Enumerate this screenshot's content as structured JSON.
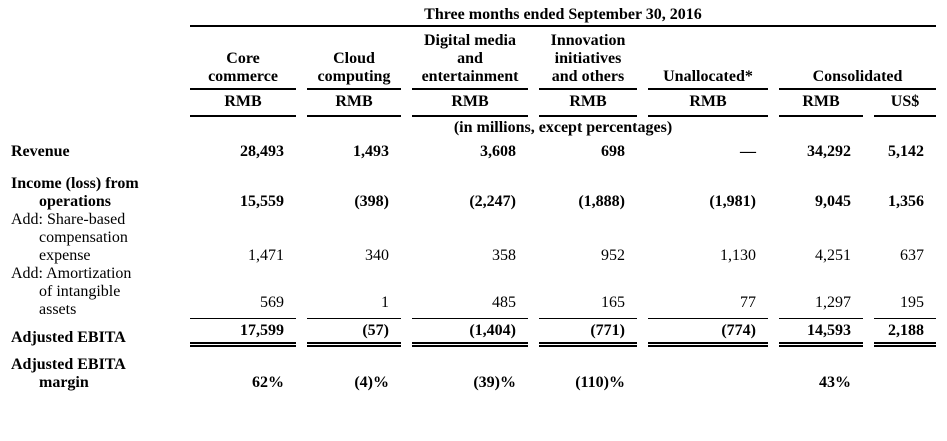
{
  "table": {
    "period_header": "Three months ended September 30, 2016",
    "note": "(in millions, except percentages)",
    "columns": [
      {
        "label": "Core\ncommerce",
        "unit": "RMB"
      },
      {
        "label": "Cloud\ncomputing",
        "unit": "RMB"
      },
      {
        "label": "Digital media\nand\nentertainment",
        "unit": "RMB"
      },
      {
        "label": "Innovation\ninitiatives\nand others",
        "unit": "RMB"
      },
      {
        "label": "Unallocated*",
        "unit": "RMB"
      }
    ],
    "consolidated": {
      "label": "Consolidated",
      "units": [
        "RMB",
        "US$"
      ]
    },
    "rows": [
      {
        "label": "Revenue",
        "values": [
          "28,493",
          "1,493",
          "3,608",
          "698",
          "—",
          "34,292",
          "5,142"
        ]
      },
      {
        "label": "Income (loss) from\noperations",
        "values": [
          "15,559",
          "(398)",
          "(2,247)",
          "(1,888)",
          "(1,981)",
          "9,045",
          "1,356"
        ]
      },
      {
        "label": "Add: Share-based\ncompensation\nexpense",
        "values": [
          "1,471",
          "340",
          "358",
          "952",
          "1,130",
          "4,251",
          "637"
        ]
      },
      {
        "label": "Add: Amortization\nof intangible\nassets",
        "values": [
          "569",
          "1",
          "485",
          "165",
          "77",
          "1,297",
          "195"
        ]
      },
      {
        "label": "Adjusted EBITA",
        "values": [
          "17,599",
          "(57)",
          "(1,404)",
          "(771)",
          "(774)",
          "14,593",
          "2,188"
        ]
      },
      {
        "label": "Adjusted EBITA\nmargin",
        "values": [
          "62%",
          "(4)%",
          "(39)%",
          "(110)%",
          "",
          "43%",
          ""
        ]
      }
    ]
  }
}
